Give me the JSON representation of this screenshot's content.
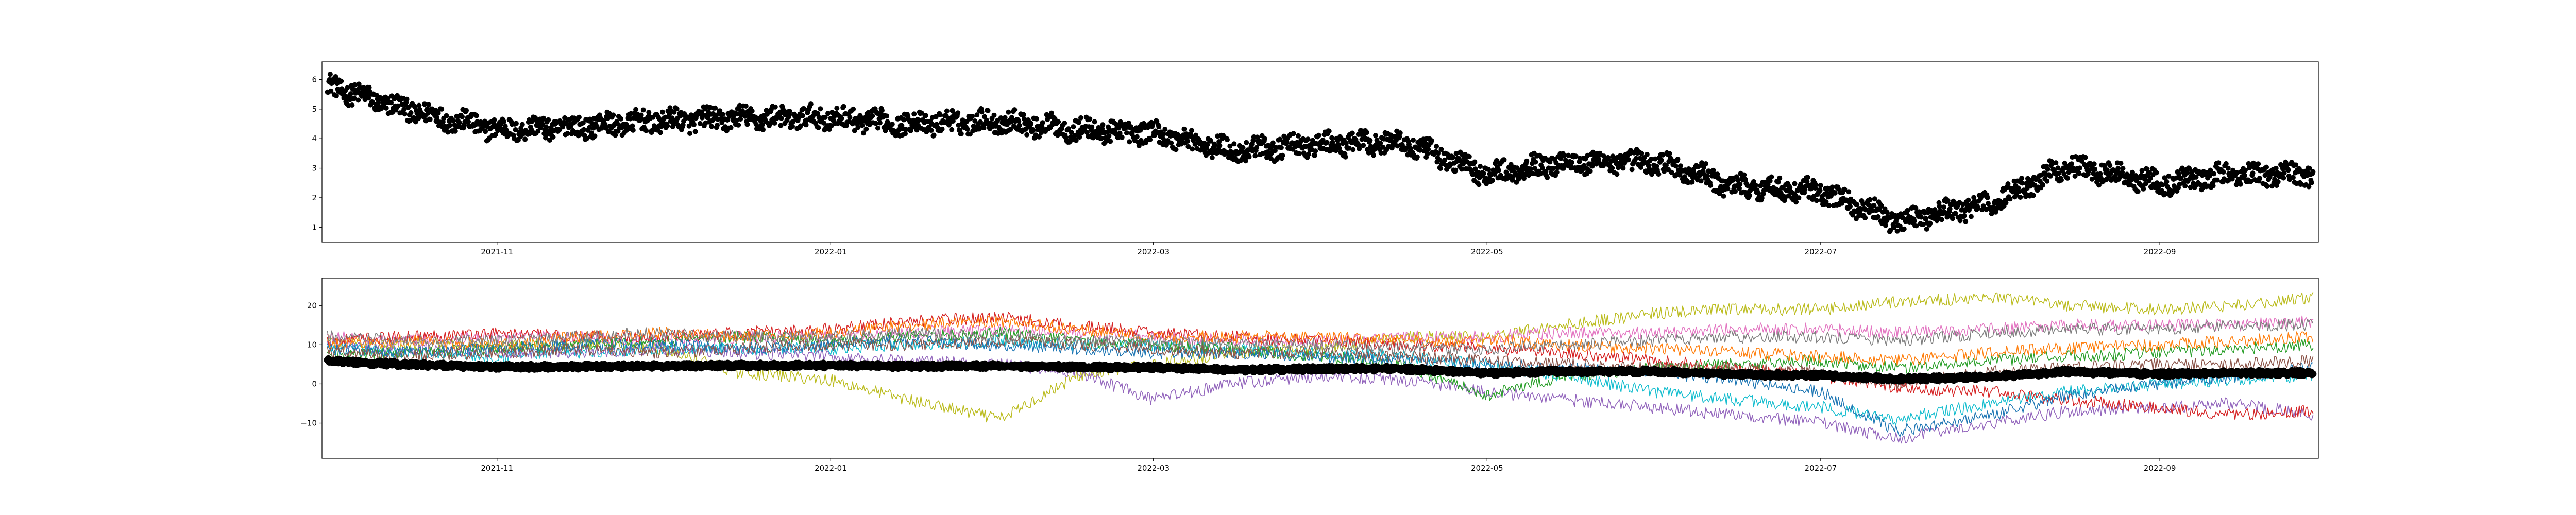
{
  "chart_data": [
    {
      "type": "scatter",
      "title": "",
      "xlabel": "",
      "ylabel": "",
      "x_range": [
        "2021-09-30",
        "2022-09-30"
      ],
      "ylim": [
        0.5,
        6.6
      ],
      "x_ticks": [
        "2021-11",
        "2022-01",
        "2022-03",
        "2022-05",
        "2022-07",
        "2022-09"
      ],
      "y_ticks": [
        1,
        2,
        3,
        4,
        5,
        6
      ],
      "grid": false,
      "legend": "none",
      "marker_color": "#000000",
      "series": [
        {
          "x": [
            "2021-10-01",
            "2021-10-15",
            "2021-11-01",
            "2021-11-15",
            "2021-12-01",
            "2021-12-15",
            "2022-01-01",
            "2022-01-15",
            "2022-02-01",
            "2022-02-15",
            "2022-03-01",
            "2022-03-15",
            "2022-04-01",
            "2022-04-15",
            "2022-05-01",
            "2022-05-15",
            "2022-06-01",
            "2022-06-15",
            "2022-07-01",
            "2022-07-15",
            "2022-08-01",
            "2022-08-15",
            "2022-09-01",
            "2022-09-15",
            "2022-09-29"
          ],
          "y": [
            5.8,
            5.0,
            4.3,
            4.4,
            4.6,
            4.7,
            4.7,
            4.5,
            4.6,
            4.3,
            4.2,
            3.6,
            3.8,
            3.9,
            2.8,
            3.2,
            3.2,
            2.4,
            2.2,
            1.2,
            1.8,
            3.1,
            2.5,
            2.8,
            2.8
          ]
        }
      ]
    },
    {
      "type": "line",
      "title": "",
      "xlabel": "",
      "ylabel": "",
      "x_range": [
        "2021-09-30",
        "2022-09-30"
      ],
      "ylim": [
        -19,
        27
      ],
      "x_ticks": [
        "2021-11",
        "2022-01",
        "2022-03",
        "2022-05",
        "2022-07",
        "2022-09"
      ],
      "y_ticks": [
        -10,
        0,
        10,
        20
      ],
      "grid": false,
      "legend": "none",
      "x": [
        "2021-10-01",
        "2021-10-15",
        "2021-11-01",
        "2021-11-15",
        "2021-12-01",
        "2021-12-15",
        "2022-01-01",
        "2022-01-15",
        "2022-02-01",
        "2022-02-15",
        "2022-03-01",
        "2022-03-15",
        "2022-04-01",
        "2022-04-15",
        "2022-05-01",
        "2022-05-15",
        "2022-06-01",
        "2022-06-15",
        "2022-07-01",
        "2022-07-15",
        "2022-08-01",
        "2022-08-15",
        "2022-09-01",
        "2022-09-15",
        "2022-09-29"
      ],
      "series": [
        {
          "color": "#bcbd22",
          "values": [
            11,
            10,
            10,
            10,
            9,
            3,
            1,
            -4,
            -9,
            2,
            5,
            8,
            9,
            12,
            12,
            15,
            18,
            19,
            19,
            21,
            22,
            20,
            19,
            20,
            22
          ]
        },
        {
          "color": "#17becf",
          "values": [
            9,
            8,
            7,
            8,
            9,
            9,
            9,
            10,
            11,
            10,
            10,
            9,
            8,
            7,
            5,
            2,
            -2,
            -4,
            -6,
            -9,
            -5,
            -2,
            0,
            1,
            2
          ]
        },
        {
          "color": "#e377c2",
          "values": [
            12,
            11,
            12,
            12,
            11,
            12,
            12,
            13,
            14,
            13,
            12,
            11,
            11,
            12,
            12,
            13,
            13,
            14,
            14,
            13,
            14,
            15,
            15,
            15,
            16
          ]
        },
        {
          "color": "#9467bd",
          "values": [
            10,
            9,
            8,
            8,
            9,
            8,
            7,
            6,
            5,
            3,
            -4,
            0,
            2,
            1,
            -2,
            -4,
            -6,
            -8,
            -10,
            -14,
            -10,
            -7,
            -6,
            -5,
            -8
          ]
        },
        {
          "color": "#d62728",
          "values": [
            11,
            12,
            13,
            12,
            12,
            13,
            14,
            16,
            17,
            15,
            13,
            12,
            11,
            10,
            9,
            8,
            6,
            4,
            2,
            -1,
            -2,
            -4,
            -6,
            -8,
            -7
          ]
        },
        {
          "color": "#2ca02c",
          "values": [
            7,
            8,
            9,
            10,
            11,
            12,
            11,
            12,
            13,
            11,
            10,
            9,
            7,
            5,
            -3,
            2,
            4,
            5,
            6,
            4,
            6,
            7,
            8,
            9,
            10
          ]
        },
        {
          "color": "#ff7f0e",
          "values": [
            10,
            11,
            10,
            12,
            13,
            12,
            13,
            15,
            16,
            14,
            12,
            12,
            12,
            11,
            11,
            10,
            9,
            8,
            7,
            6,
            8,
            9,
            10,
            11,
            12
          ]
        },
        {
          "color": "#1f77b4",
          "values": [
            9,
            8,
            9,
            10,
            10,
            9,
            10,
            11,
            10,
            9,
            8,
            8,
            7,
            6,
            5,
            4,
            3,
            1,
            -2,
            -12,
            -8,
            -3,
            0,
            2,
            4
          ]
        },
        {
          "color": "#8c564b",
          "values": [
            8,
            7,
            8,
            9,
            8,
            9,
            10,
            10,
            11,
            10,
            9,
            8,
            8,
            7,
            6,
            5,
            4,
            4,
            3,
            0,
            3,
            4,
            5,
            5,
            6
          ]
        },
        {
          "color": "#7f7f7f",
          "values": [
            12,
            11,
            11,
            12,
            13,
            12,
            12,
            13,
            12,
            11,
            11,
            10,
            10,
            9,
            9,
            10,
            11,
            12,
            12,
            11,
            13,
            14,
            14,
            15,
            15
          ]
        },
        {
          "color": "#000000",
          "values": [
            5.8,
            5.0,
            4.3,
            4.4,
            4.6,
            4.7,
            4.7,
            4.5,
            4.6,
            4.3,
            4.2,
            3.6,
            3.8,
            3.9,
            2.8,
            3.2,
            3.2,
            2.4,
            2.2,
            1.2,
            1.8,
            3.1,
            2.5,
            2.8,
            2.8
          ]
        }
      ]
    }
  ]
}
